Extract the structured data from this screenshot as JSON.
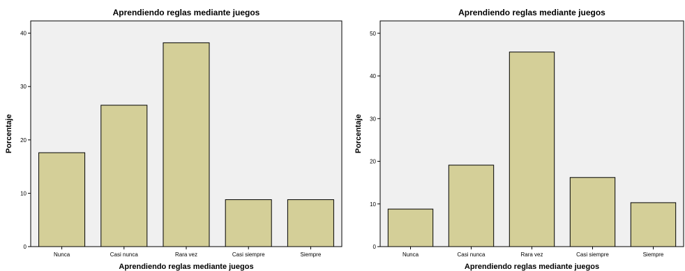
{
  "colors": {
    "bar_fill": "#d4cf98",
    "bar_stroke": "#000000",
    "plot_background": "#f0f0f0",
    "axis": "#000000"
  },
  "chart_data": [
    {
      "type": "bar",
      "title": "Aprendiendo reglas mediante juegos",
      "xlabel": "Aprendiendo reglas mediante juegos",
      "ylabel": "Porcentaje",
      "categories": [
        "Nunca",
        "Casi nunca",
        "Rara vez",
        "Casi siempre",
        "Siempre"
      ],
      "values": [
        17.6,
        26.5,
        38.2,
        8.8,
        8.8
      ],
      "ylim": [
        0,
        42.3
      ],
      "yticks": [
        0,
        10,
        20,
        30,
        40
      ],
      "grid": false,
      "legend": "none"
    },
    {
      "type": "bar",
      "title": "Aprendiendo reglas mediante juegos",
      "xlabel": "Aprendiendo reglas mediante juegos",
      "ylabel": "Porcentaje",
      "categories": [
        "Nunca",
        "Casi nunca",
        "Rara vez",
        "Casi siempre",
        "Siempre"
      ],
      "values": [
        8.8,
        19.1,
        45.6,
        16.2,
        10.3
      ],
      "ylim": [
        0,
        52.9
      ],
      "yticks": [
        0,
        10,
        20,
        30,
        40,
        50
      ],
      "grid": false,
      "legend": "none"
    }
  ]
}
